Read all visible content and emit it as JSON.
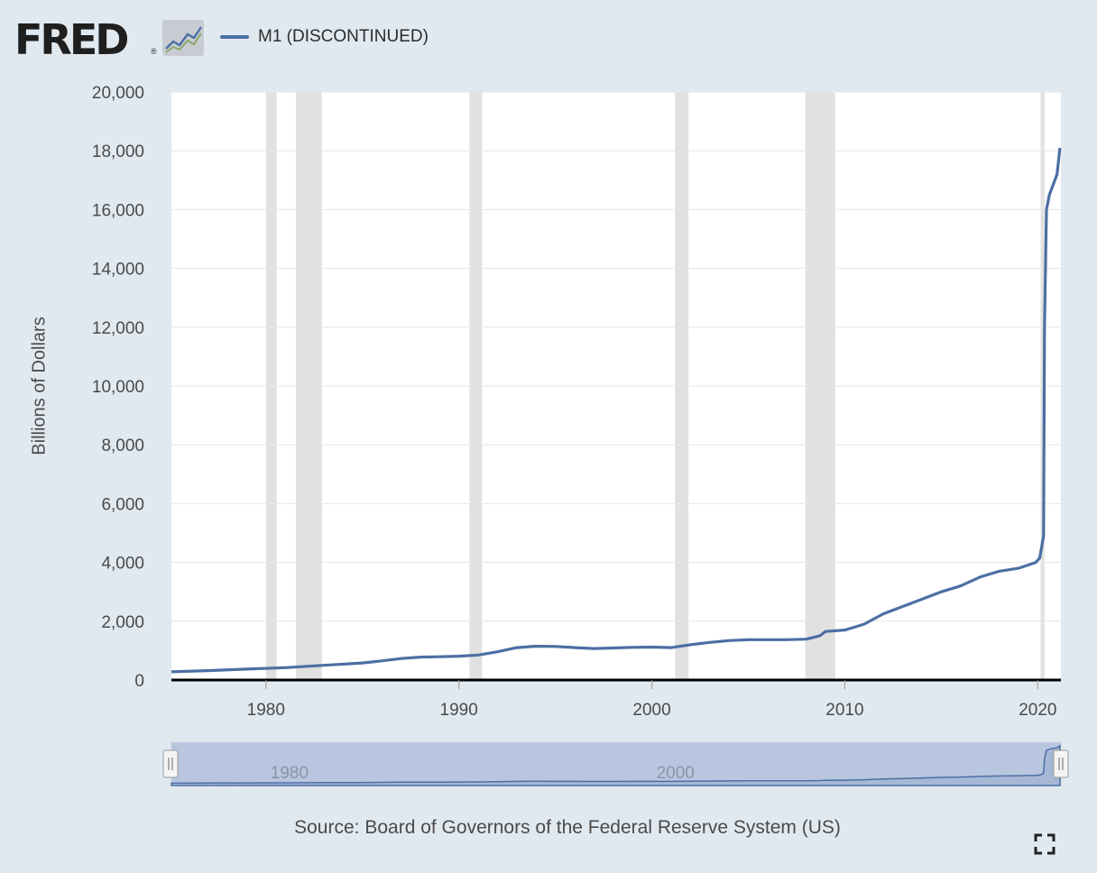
{
  "brand": {
    "logo_text": "FRED",
    "registered_mark": "®"
  },
  "legend": {
    "label": "M1 (DISCONTINUED)",
    "color": "#4c6fa3"
  },
  "source_text": "Source: Board of Governors of the Federal Reserve System (US)",
  "icons": {
    "logo": "fred-logo-chart-icon",
    "fullscreen": "fullscreen-icon"
  },
  "colors": {
    "line": "#4c6fa3",
    "recession": "#e1e1e1",
    "background": "#e1e9f0",
    "plot": "#ffffff"
  },
  "chart_data": {
    "type": "line",
    "title": "",
    "xlabel": "",
    "ylabel": "Billions of Dollars",
    "xlim": [
      1975.1,
      2021.2
    ],
    "ylim": [
      0,
      20000
    ],
    "yticks": [
      0,
      2000,
      4000,
      6000,
      8000,
      10000,
      12000,
      14000,
      16000,
      18000,
      20000
    ],
    "ytick_labels": [
      "0",
      "2,000",
      "4,000",
      "6,000",
      "8,000",
      "10,000",
      "12,000",
      "14,000",
      "16,000",
      "18,000",
      "20,000"
    ],
    "xticks": [
      1980,
      1990,
      2000,
      2010,
      2020
    ],
    "xtick_labels": [
      "1980",
      "1990",
      "2000",
      "2010",
      "2020"
    ],
    "grid": true,
    "legend_position": "top-left",
    "recessions": [
      [
        1980.0,
        1980.55
      ],
      [
        1981.55,
        1982.9
      ],
      [
        1990.55,
        1991.2
      ],
      [
        2001.2,
        2001.9
      ],
      [
        2007.95,
        2009.5
      ],
      [
        2020.15,
        2020.35
      ]
    ],
    "series": [
      {
        "name": "M1 (DISCONTINUED)",
        "x": [
          1975.1,
          1977,
          1979,
          1981,
          1983,
          1985,
          1986,
          1987,
          1988,
          1989,
          1990,
          1991,
          1992,
          1993,
          1994,
          1995,
          1996,
          1997,
          1998,
          1999,
          2000,
          2001,
          2002,
          2003,
          2004,
          2005,
          2006,
          2007,
          2008,
          2008.7,
          2009,
          2010,
          2011,
          2012,
          2013,
          2014,
          2015,
          2016,
          2017,
          2018,
          2019,
          2019.9,
          2020.1,
          2020.3,
          2020.35,
          2020.45,
          2020.6,
          2021.0,
          2021.15
        ],
        "y": [
          280,
          320,
          370,
          420,
          500,
          580,
          650,
          730,
          780,
          790,
          810,
          850,
          960,
          1100,
          1150,
          1140,
          1100,
          1070,
          1090,
          1110,
          1120,
          1100,
          1200,
          1280,
          1340,
          1370,
          1370,
          1370,
          1390,
          1500,
          1650,
          1700,
          1900,
          2250,
          2500,
          2750,
          3000,
          3200,
          3500,
          3700,
          3800,
          4000,
          4150,
          4900,
          12000,
          16000,
          16500,
          17200,
          18100
        ]
      }
    ]
  }
}
